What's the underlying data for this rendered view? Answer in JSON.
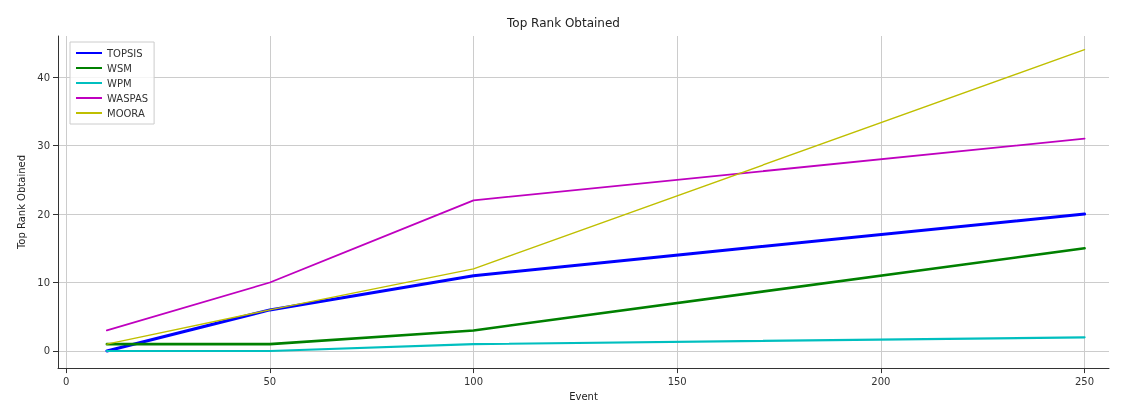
{
  "chart_data": {
    "type": "line",
    "title": "Top Rank Obtained",
    "xlabel": "Event",
    "ylabel": "Top Rank Obtained",
    "x": [
      10,
      50,
      100,
      250
    ],
    "series": [
      {
        "name": "TOPSIS",
        "color": "#0000ff",
        "values": [
          0,
          6,
          11,
          20
        ]
      },
      {
        "name": "WSM",
        "color": "#008000",
        "values": [
          1,
          1,
          3,
          15
        ]
      },
      {
        "name": "WPM",
        "color": "#00bfbf",
        "values": [
          0,
          0,
          1,
          2
        ]
      },
      {
        "name": "WASPAS",
        "color": "#bf00bf",
        "values": [
          3,
          10,
          22,
          31
        ]
      },
      {
        "name": "MOORA",
        "color": "#bfbf00",
        "values": [
          1,
          6,
          12,
          44
        ]
      }
    ],
    "xlim": [
      -2,
      256
    ],
    "xticks": [
      0,
      50,
      100,
      150,
      200,
      250
    ],
    "ylim": [
      -2.5,
      46
    ],
    "yticks": [
      0,
      10,
      20,
      30,
      40
    ],
    "grid": true,
    "legend": "top left",
    "marker": "none",
    "line_style": "solid"
  }
}
